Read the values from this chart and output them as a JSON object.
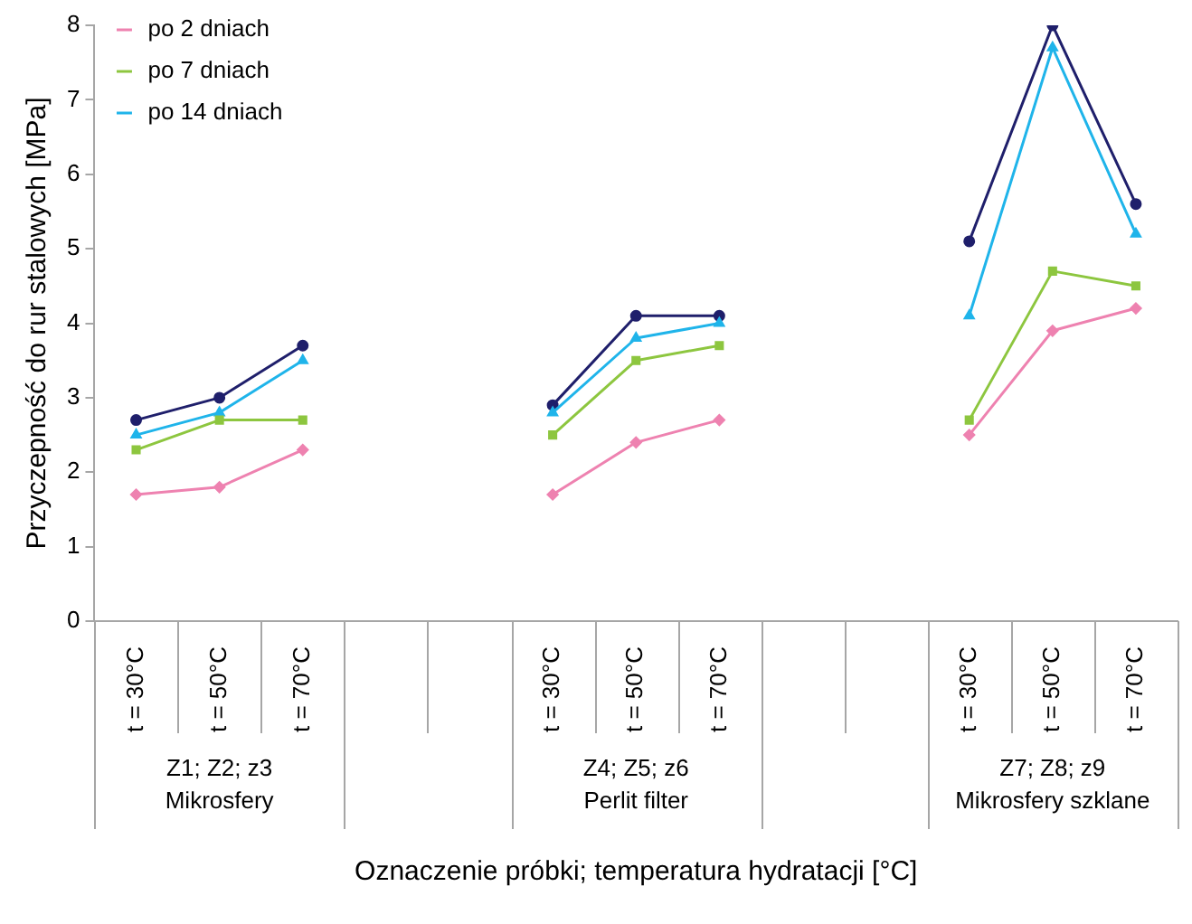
{
  "chart_data": {
    "type": "line",
    "xlabel": "Oznaczenie próbki; temperatura hydratacji [°C]",
    "ylabel": "Przyczepność do rur stalowych [MPa]",
    "categories": [
      "t = 30°C",
      "t = 50°C",
      "t = 70°C",
      null,
      null,
      "t = 30°C",
      "t = 50°C",
      "t = 70°C",
      null,
      null,
      "t = 30°C",
      "t = 50°C",
      "t = 70°C"
    ],
    "series": [
      {
        "name": "po 2 dniach",
        "color": "#ee82b0",
        "marker": "diamond",
        "values": [
          1.7,
          1.8,
          2.3,
          null,
          null,
          1.7,
          2.4,
          2.7,
          null,
          null,
          2.5,
          3.9,
          4.2
        ]
      },
      {
        "name": "po 7 dniach",
        "color": "#8dc63f",
        "marker": "square",
        "values": [
          2.3,
          2.7,
          2.7,
          null,
          null,
          2.5,
          3.5,
          3.7,
          null,
          null,
          2.7,
          4.7,
          4.5
        ]
      },
      {
        "name": "po 14 dniach",
        "color": "#1fb4ea",
        "marker": "triangle",
        "values": [
          2.5,
          2.8,
          3.5,
          null,
          null,
          2.8,
          3.8,
          4.0,
          null,
          null,
          4.1,
          7.7,
          5.2
        ]
      },
      {
        "color": "#1f1f6b",
        "marker": "circle",
        "values": [
          2.7,
          3.0,
          3.7,
          null,
          null,
          2.9,
          4.1,
          4.1,
          null,
          null,
          5.1,
          8.0,
          5.6
        ]
      }
    ],
    "ylim": [
      0,
      8
    ],
    "yticks": [
      0,
      1,
      2,
      3,
      4,
      5,
      6,
      7,
      8
    ],
    "grid": false,
    "legend": "top left",
    "line_style": "solid",
    "annotations": [
      "Z1; Z2; z3\nMikrosfery",
      "Z4; Z5; z6\nPerlit filter",
      "Z7; Z8; z9\nMikrosfery szklane"
    ]
  }
}
